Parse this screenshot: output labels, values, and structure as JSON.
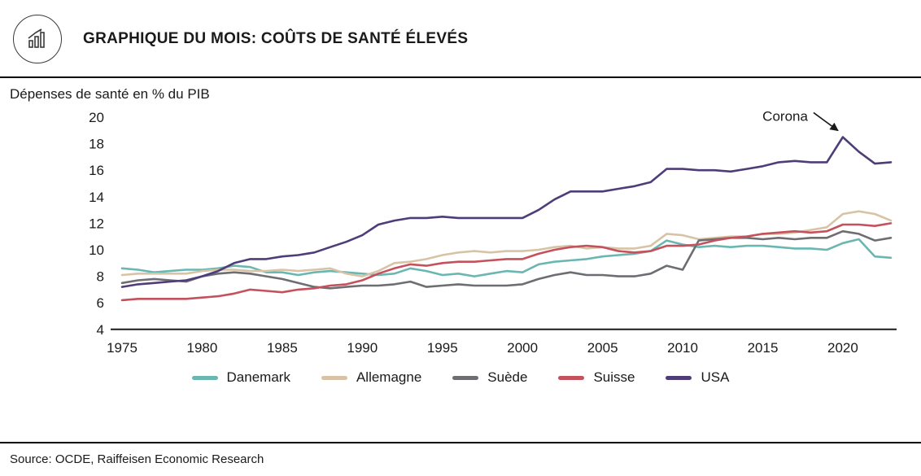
{
  "header": {
    "title": "GRAPHIQUE DU MOIS: COÛTS DE SANTÉ ÉLEVÉS"
  },
  "subtitle": "Dépenses de santé en % du PIB",
  "source": "Source: OCDE, Raiffeisen Economic Research",
  "chart_data": {
    "type": "line",
    "title": "Dépenses de santé en % du PIB",
    "xlabel": "",
    "ylabel": "Dépenses de santé en % du PIB",
    "xlim": [
      1975,
      2023
    ],
    "ylim": [
      4,
      20
    ],
    "yticks": [
      4,
      6,
      8,
      10,
      12,
      14,
      16,
      18,
      20
    ],
    "xticks": [
      1975,
      1980,
      1985,
      1990,
      1995,
      2000,
      2005,
      2010,
      2015,
      2020
    ],
    "grid": false,
    "legend_position": "bottom",
    "annotation": {
      "text": "Corona",
      "x": 2020,
      "y": 18.5
    },
    "x": [
      1975,
      1976,
      1977,
      1978,
      1979,
      1980,
      1981,
      1982,
      1983,
      1984,
      1985,
      1986,
      1987,
      1988,
      1989,
      1990,
      1991,
      1992,
      1993,
      1994,
      1995,
      1996,
      1997,
      1998,
      1999,
      2000,
      2001,
      2002,
      2003,
      2004,
      2005,
      2006,
      2007,
      2008,
      2009,
      2010,
      2011,
      2012,
      2013,
      2014,
      2015,
      2016,
      2017,
      2018,
      2019,
      2020,
      2021,
      2022,
      2023
    ],
    "series": [
      {
        "name": "Danemark",
        "color": "#6ab7b2",
        "values": [
          8.6,
          8.5,
          8.3,
          8.4,
          8.5,
          8.5,
          8.6,
          8.8,
          8.7,
          8.3,
          8.3,
          8.1,
          8.3,
          8.4,
          8.3,
          8.2,
          8.1,
          8.2,
          8.6,
          8.4,
          8.1,
          8.2,
          8.0,
          8.2,
          8.4,
          8.3,
          8.9,
          9.1,
          9.2,
          9.3,
          9.5,
          9.6,
          9.7,
          9.9,
          10.7,
          10.4,
          10.2,
          10.3,
          10.2,
          10.3,
          10.3,
          10.2,
          10.1,
          10.1,
          10.0,
          10.5,
          10.8,
          9.5,
          9.4
        ]
      },
      {
        "name": "Allemagne",
        "color": "#d8c3a6",
        "values": [
          8.1,
          8.2,
          8.2,
          8.2,
          8.2,
          8.4,
          8.5,
          8.5,
          8.4,
          8.4,
          8.5,
          8.4,
          8.5,
          8.6,
          8.2,
          8.0,
          8.4,
          9.0,
          9.1,
          9.3,
          9.6,
          9.8,
          9.9,
          9.8,
          9.9,
          9.9,
          10.0,
          10.2,
          10.3,
          10.1,
          10.2,
          10.1,
          10.1,
          10.3,
          11.2,
          11.1,
          10.8,
          10.9,
          11.0,
          11.0,
          11.2,
          11.2,
          11.3,
          11.5,
          11.7,
          12.7,
          12.9,
          12.7,
          12.2
        ]
      },
      {
        "name": "Suède",
        "color": "#6d6d72",
        "values": [
          7.5,
          7.7,
          7.8,
          7.7,
          7.6,
          8.0,
          8.2,
          8.3,
          8.2,
          8.0,
          7.8,
          7.5,
          7.2,
          7.1,
          7.2,
          7.3,
          7.3,
          7.4,
          7.6,
          7.2,
          7.3,
          7.4,
          7.3,
          7.3,
          7.3,
          7.4,
          7.8,
          8.1,
          8.3,
          8.1,
          8.1,
          8.0,
          8.0,
          8.2,
          8.8,
          8.5,
          10.7,
          10.8,
          10.9,
          10.9,
          10.8,
          10.9,
          10.8,
          10.9,
          10.9,
          11.4,
          11.2,
          10.7,
          10.9
        ]
      },
      {
        "name": "Suisse",
        "color": "#c4515c",
        "values": [
          6.2,
          6.3,
          6.3,
          6.3,
          6.3,
          6.4,
          6.5,
          6.7,
          7.0,
          6.9,
          6.8,
          7.0,
          7.1,
          7.3,
          7.4,
          7.7,
          8.2,
          8.6,
          8.9,
          8.8,
          9.0,
          9.1,
          9.1,
          9.2,
          9.3,
          9.3,
          9.7,
          10.0,
          10.2,
          10.3,
          10.2,
          9.9,
          9.8,
          9.9,
          10.3,
          10.3,
          10.4,
          10.7,
          10.9,
          11.0,
          11.2,
          11.3,
          11.4,
          11.3,
          11.4,
          11.9,
          11.9,
          11.8,
          12.0
        ]
      },
      {
        "name": "USA",
        "color": "#4e3d78",
        "values": [
          7.2,
          7.4,
          7.5,
          7.6,
          7.7,
          8.0,
          8.4,
          9.0,
          9.3,
          9.3,
          9.5,
          9.6,
          9.8,
          10.2,
          10.6,
          11.1,
          11.9,
          12.2,
          12.4,
          12.4,
          12.5,
          12.4,
          12.4,
          12.4,
          12.4,
          12.4,
          13.0,
          13.8,
          14.4,
          14.4,
          14.4,
          14.6,
          14.8,
          15.1,
          16.1,
          16.1,
          16.0,
          16.0,
          15.9,
          16.1,
          16.3,
          16.6,
          16.7,
          16.6,
          16.6,
          18.5,
          17.4,
          16.5,
          16.6
        ]
      }
    ]
  }
}
